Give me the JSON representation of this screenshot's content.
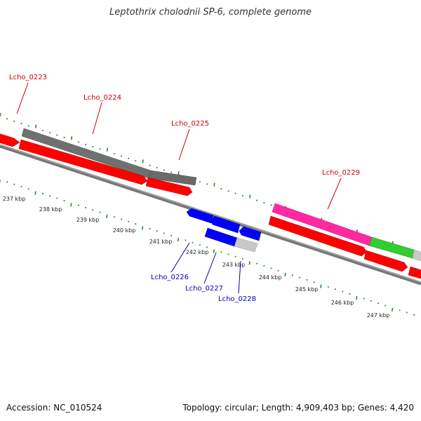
{
  "title": "Leptothrix cholodnii SP-6, complete genome",
  "footer": {
    "accession": "Accession: NC_010524",
    "summary": "Topology: circular; Length: 4,909,403 bp; Genes: 4,420"
  },
  "colors": {
    "ruler_dots": "#2a8a2a",
    "backbone": "#8a8a8a",
    "forward_label": "#cc0000",
    "reverse_label": "#0000bb",
    "red": "#ff0000",
    "grey": "#707070",
    "magenta": "#ff2aa0",
    "green": "#33cc33",
    "blue": "#0000ff",
    "light_grey": "#c8c8c8"
  },
  "ruler_labels": [
    "237 kbp",
    "238 kbp",
    "239 kbp",
    "240 kbp",
    "241 kbp",
    "242 kbp",
    "243 kbp",
    "244 kbp",
    "245 kbp",
    "246 kbp",
    "247 kbp"
  ],
  "gene_labels": {
    "forward": [
      "Lcho_0223",
      "Lcho_0224",
      "Lcho_0225",
      "Lcho_0229"
    ],
    "reverse": [
      "Lcho_0226",
      "Lcho_0227",
      "Lcho_0228"
    ]
  }
}
